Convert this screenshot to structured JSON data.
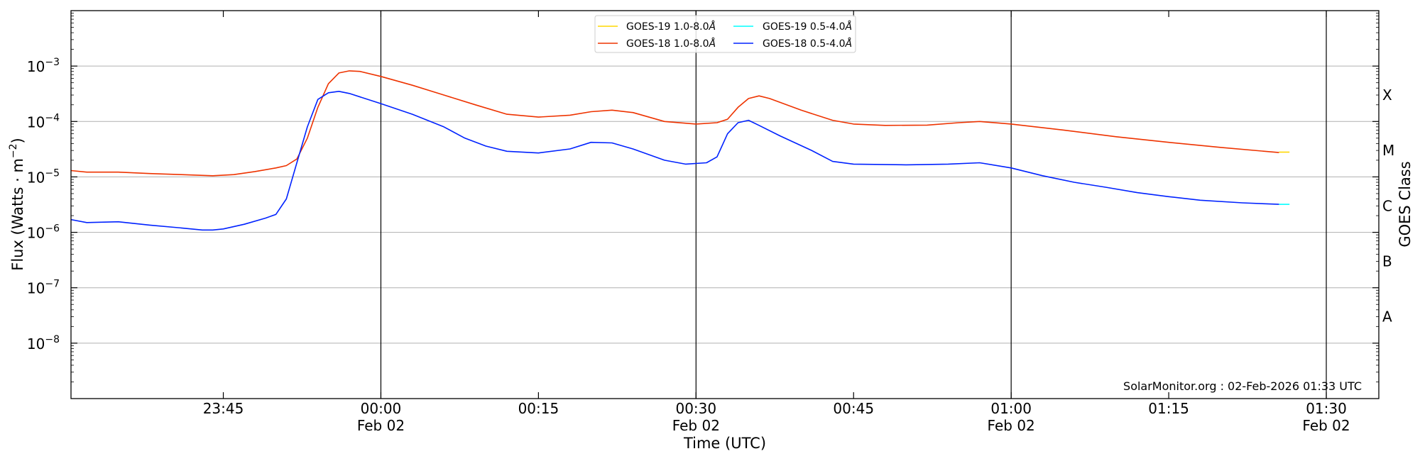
{
  "chart_data": {
    "type": "line",
    "title": "",
    "xlabel": "Time (UTC)",
    "ylabel": "Flux (Watts · m",
    "ylabel_exp": "−2",
    "ylabel_close": ")",
    "right_label": "GOES Class",
    "yscale": "log",
    "ylim": [
      1e-09,
      0.01
    ],
    "xlim": [
      "23:30:30",
      "01:35:00"
    ],
    "xaxis_date": "2026-02-01 to 2026-02-02",
    "grid": "horizontal at decades",
    "legend_placement": "top-center",
    "yticks": [
      {
        "value": 1e-08,
        "mant": "10",
        "exp": "−8"
      },
      {
        "value": 1e-07,
        "mant": "10",
        "exp": "−7"
      },
      {
        "value": 1e-06,
        "mant": "10",
        "exp": "−6"
      },
      {
        "value": 1e-05,
        "mant": "10",
        "exp": "−5"
      },
      {
        "value": 0.0001,
        "mant": "10",
        "exp": "−4"
      },
      {
        "value": 0.001,
        "mant": "10",
        "exp": "−3"
      }
    ],
    "xticks": [
      {
        "time": "23:45",
        "label": "23:45",
        "sub": ""
      },
      {
        "time": "00:00",
        "label": "00:00",
        "sub": "Feb 02"
      },
      {
        "time": "00:15",
        "label": "00:15",
        "sub": ""
      },
      {
        "time": "00:30",
        "label": "00:30",
        "sub": "Feb 02"
      },
      {
        "time": "00:45",
        "label": "00:45",
        "sub": ""
      },
      {
        "time": "01:00",
        "label": "01:00",
        "sub": "Feb 02"
      },
      {
        "time": "01:15",
        "label": "01:15",
        "sub": ""
      },
      {
        "time": "01:30",
        "label": "01:30",
        "sub": "Feb 02"
      }
    ],
    "class_labels": [
      {
        "label": "A",
        "value": 3e-08
      },
      {
        "label": "B",
        "value": 3e-07
      },
      {
        "label": "C",
        "value": 3e-06
      },
      {
        "label": "M",
        "value": 3e-05
      },
      {
        "label": "X",
        "value": 0.0003
      }
    ],
    "vlines": [
      "00:00",
      "00:30",
      "01:00",
      "01:30"
    ],
    "series": [
      {
        "name": "GOES-19 1.0-8.0Å",
        "color": "#ffd700",
        "points": [
          [
            "01:25:30",
            2.8e-05
          ],
          [
            "01:26:30",
            2.8e-05
          ]
        ]
      },
      {
        "name": "GOES-18 1.0-8.0Å",
        "color": "#ee3300",
        "points": [
          [
            "23:30:30",
            1.3e-05
          ],
          [
            "23:32",
            1.22e-05
          ],
          [
            "23:35",
            1.22e-05
          ],
          [
            "23:38",
            1.15e-05
          ],
          [
            "23:41",
            1.1e-05
          ],
          [
            "23:44",
            1.05e-05
          ],
          [
            "23:46",
            1.1e-05
          ],
          [
            "23:48",
            1.25e-05
          ],
          [
            "23:50",
            1.45e-05
          ],
          [
            "23:51",
            1.6e-05
          ],
          [
            "23:52",
            2.1e-05
          ],
          [
            "23:53",
            5e-05
          ],
          [
            "23:54",
            0.00018
          ],
          [
            "23:55",
            0.00048
          ],
          [
            "23:56",
            0.00075
          ],
          [
            "23:57",
            0.00082
          ],
          [
            "23:58",
            0.0008
          ],
          [
            "00:00",
            0.00065
          ],
          [
            "00:03",
            0.00045
          ],
          [
            "00:06",
            0.0003
          ],
          [
            "00:09",
            0.0002
          ],
          [
            "00:12",
            0.000135
          ],
          [
            "00:15",
            0.00012
          ],
          [
            "00:18",
            0.00013
          ],
          [
            "00:20",
            0.00015
          ],
          [
            "00:22",
            0.00016
          ],
          [
            "00:24",
            0.000145
          ],
          [
            "00:27",
            0.0001
          ],
          [
            "00:30",
            9e-05
          ],
          [
            "00:32",
            9.5e-05
          ],
          [
            "00:33",
            0.00011
          ],
          [
            "00:34",
            0.00018
          ],
          [
            "00:35",
            0.00026
          ],
          [
            "00:36",
            0.00029
          ],
          [
            "00:37",
            0.00026
          ],
          [
            "00:40",
            0.00016
          ],
          [
            "00:43",
            0.000105
          ],
          [
            "00:45",
            9e-05
          ],
          [
            "00:48",
            8.5e-05
          ],
          [
            "00:52",
            8.6e-05
          ],
          [
            "00:55",
            9.5e-05
          ],
          [
            "00:57",
            0.0001
          ],
          [
            "01:00",
            9e-05
          ],
          [
            "01:05",
            7e-05
          ],
          [
            "01:10",
            5.3e-05
          ],
          [
            "01:15",
            4.2e-05
          ],
          [
            "01:20",
            3.4e-05
          ],
          [
            "01:25:30",
            2.75e-05
          ]
        ]
      },
      {
        "name": "GOES-19 0.5-4.0Å",
        "color": "#00ffff",
        "points": [
          [
            "01:25:30",
            3.2e-06
          ],
          [
            "01:26:30",
            3.2e-06
          ]
        ]
      },
      {
        "name": "GOES-18 0.5-4.0Å",
        "color": "#0022ff",
        "points": [
          [
            "23:30:30",
            1.7e-06
          ],
          [
            "23:32",
            1.5e-06
          ],
          [
            "23:35",
            1.55e-06
          ],
          [
            "23:38",
            1.35e-06
          ],
          [
            "23:41",
            1.2e-06
          ],
          [
            "23:43",
            1.1e-06
          ],
          [
            "23:44",
            1.1e-06
          ],
          [
            "23:45",
            1.15e-06
          ],
          [
            "23:47",
            1.4e-06
          ],
          [
            "23:49",
            1.8e-06
          ],
          [
            "23:50",
            2.1e-06
          ],
          [
            "23:51",
            4e-06
          ],
          [
            "23:52",
            1.8e-05
          ],
          [
            "23:53",
            8e-05
          ],
          [
            "23:54",
            0.00025
          ],
          [
            "23:55",
            0.00033
          ],
          [
            "23:56",
            0.00035
          ],
          [
            "23:57",
            0.00032
          ],
          [
            "00:00",
            0.00021
          ],
          [
            "00:03",
            0.000135
          ],
          [
            "00:06",
            8e-05
          ],
          [
            "00:08",
            5e-05
          ],
          [
            "00:10",
            3.6e-05
          ],
          [
            "00:12",
            2.9e-05
          ],
          [
            "00:15",
            2.7e-05
          ],
          [
            "00:18",
            3.2e-05
          ],
          [
            "00:20",
            4.2e-05
          ],
          [
            "00:22",
            4.1e-05
          ],
          [
            "00:24",
            3.2e-05
          ],
          [
            "00:27",
            2e-05
          ],
          [
            "00:29",
            1.7e-05
          ],
          [
            "00:31",
            1.8e-05
          ],
          [
            "00:32",
            2.3e-05
          ],
          [
            "00:33",
            6e-05
          ],
          [
            "00:34",
            9.5e-05
          ],
          [
            "00:35",
            0.000105
          ],
          [
            "00:36",
            8.5e-05
          ],
          [
            "00:38",
            5.5e-05
          ],
          [
            "00:41",
            3e-05
          ],
          [
            "00:43",
            1.9e-05
          ],
          [
            "00:45",
            1.7e-05
          ],
          [
            "00:50",
            1.65e-05
          ],
          [
            "00:54",
            1.7e-05
          ],
          [
            "00:57",
            1.8e-05
          ],
          [
            "01:00",
            1.45e-05
          ],
          [
            "01:03",
            1.05e-05
          ],
          [
            "01:06",
            8e-06
          ],
          [
            "01:09",
            6.5e-06
          ],
          [
            "01:12",
            5.2e-06
          ],
          [
            "01:15",
            4.4e-06
          ],
          [
            "01:18",
            3.8e-06
          ],
          [
            "01:22",
            3.4e-06
          ],
          [
            "01:25:30",
            3.2e-06
          ]
        ]
      }
    ],
    "legend_items": [
      {
        "label": "GOES-19 1.0-8.0",
        "unit": "Å",
        "color": "#ffd700"
      },
      {
        "label": "GOES-18 1.0-8.0",
        "unit": "Å",
        "color": "#ee3300"
      },
      {
        "label": "GOES-19 0.5-4.0",
        "unit": "Å",
        "color": "#00ffff"
      },
      {
        "label": "GOES-18 0.5-4.0",
        "unit": "Å",
        "color": "#0022ff"
      }
    ],
    "footer": "SolarMonitor.org : 02-Feb-2026 01:33 UTC"
  }
}
